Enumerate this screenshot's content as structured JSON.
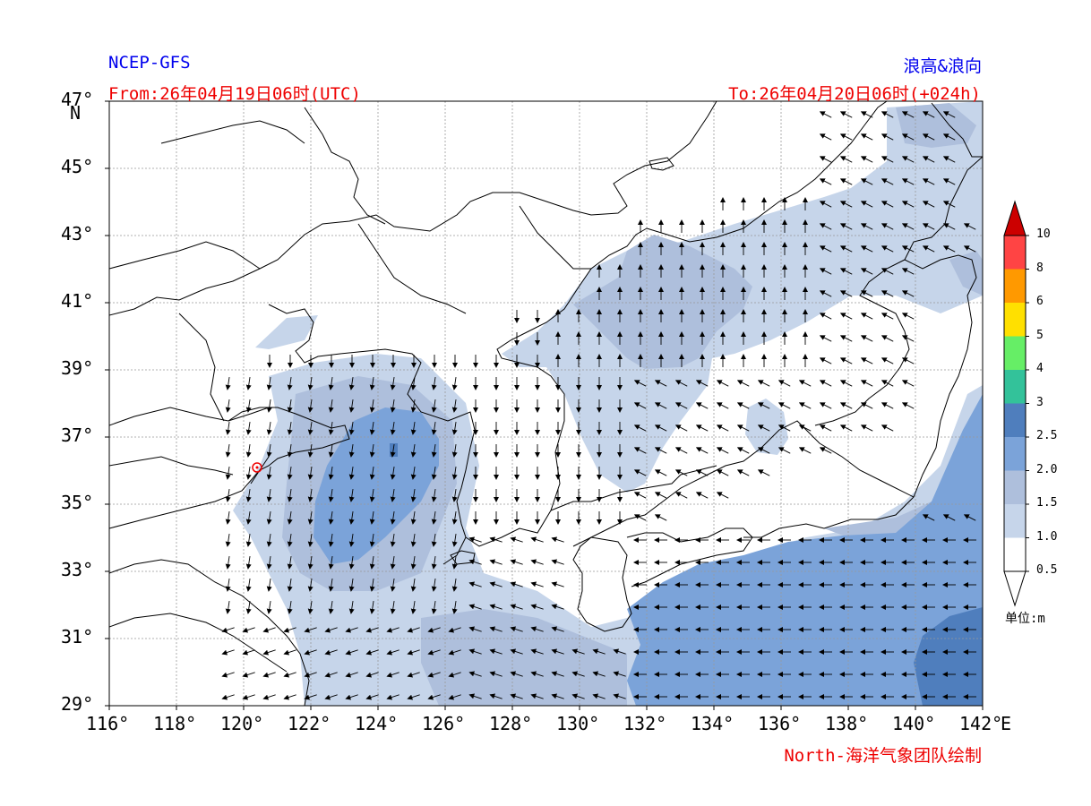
{
  "header": {
    "model": "NCEP-GFS",
    "product": "浪高&浪向",
    "from": "From:26年04月19日06时(UTC)",
    "to": "To:26年04月20日06时(+024h)",
    "credit": "North-海洋气象团队绘制"
  },
  "axes": {
    "lat_labels": [
      "47°",
      "45°",
      "43°",
      "41°",
      "39°",
      "37°",
      "35°",
      "33°",
      "31°",
      "29°"
    ],
    "lat_unit": "N",
    "lon_labels": [
      "116°",
      "118°",
      "120°",
      "122°",
      "124°",
      "126°",
      "128°",
      "130°",
      "132°",
      "134°",
      "136°",
      "138°",
      "140°",
      "142°"
    ],
    "lon_unit": "E"
  },
  "colorbar": {
    "levels": [
      "0.5",
      "1.0",
      "1.5",
      "2.0",
      "2.5",
      "3",
      "4",
      "5",
      "6",
      "8",
      "10"
    ],
    "colors": [
      "#ffffff",
      "#c6d5ea",
      "#aebfdc",
      "#7ba3d9",
      "#4f7ebd",
      "#33c29a",
      "#66ee66",
      "#ffe000",
      "#ff9900",
      "#ff4444",
      "#cc0000"
    ],
    "unit": "单位:m"
  },
  "map": {
    "colors": {
      "land_outline": "#000000",
      "grid": "#999999",
      "marker": "#ee0000"
    }
  }
}
